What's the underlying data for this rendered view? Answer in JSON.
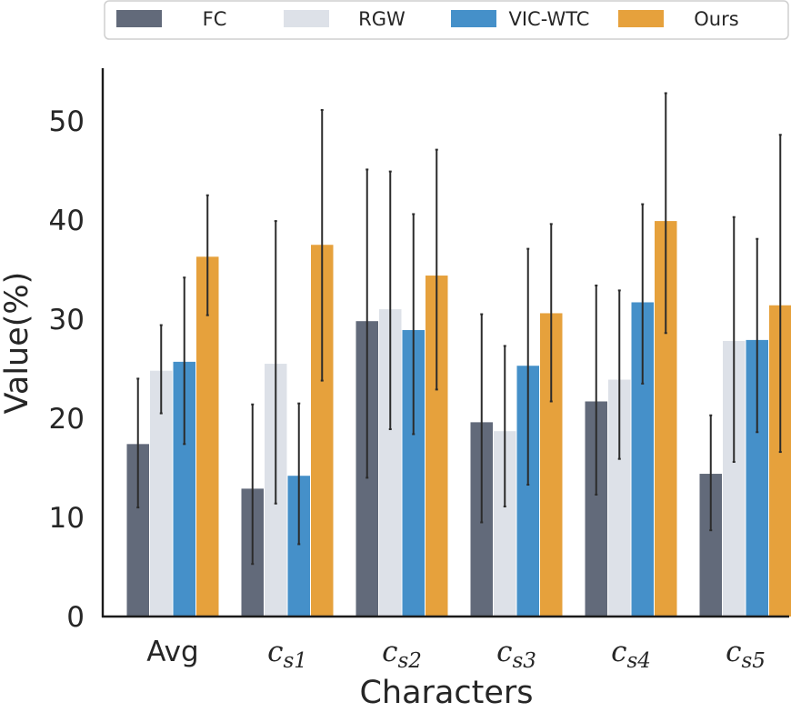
{
  "chart_data": {
    "type": "bar",
    "xlabel": "Characters",
    "ylabel": "Value(%)",
    "ylim": [
      0,
      55
    ],
    "yticks": [
      0,
      10,
      20,
      30,
      40,
      50
    ],
    "legend_position": "top",
    "grid": false,
    "categories": [
      {
        "base": "Avg",
        "math": false,
        "sub": ""
      },
      {
        "base": "c",
        "math": true,
        "sub": "s1"
      },
      {
        "base": "c",
        "math": true,
        "sub": "s2"
      },
      {
        "base": "c",
        "math": true,
        "sub": "s3"
      },
      {
        "base": "c",
        "math": true,
        "sub": "s4"
      },
      {
        "base": "c",
        "math": true,
        "sub": "s5"
      }
    ],
    "series": [
      {
        "name": "FC",
        "color": "#626a7a",
        "values": [
          17.4,
          12.9,
          29.8,
          19.6,
          21.7,
          14.4
        ],
        "err_low": [
          11.0,
          5.3,
          14.0,
          9.5,
          12.3,
          8.7
        ],
        "err_high": [
          24.0,
          21.4,
          45.1,
          30.5,
          33.4,
          20.3
        ]
      },
      {
        "name": "RGW",
        "color": "#dde1e8",
        "values": [
          24.8,
          25.5,
          31.0,
          18.7,
          23.9,
          27.8
        ],
        "err_low": [
          20.5,
          11.4,
          18.9,
          11.1,
          15.9,
          15.6
        ],
        "err_high": [
          29.4,
          39.9,
          44.9,
          27.3,
          32.9,
          40.3
        ]
      },
      {
        "name": "VIC-WTC",
        "color": "#4590c9",
        "values": [
          25.7,
          14.2,
          28.9,
          25.3,
          31.7,
          27.9
        ],
        "err_low": [
          17.4,
          7.3,
          18.4,
          13.3,
          23.5,
          18.6
        ],
        "err_high": [
          34.2,
          21.5,
          40.6,
          37.1,
          41.6,
          38.1
        ]
      },
      {
        "name": "Ours",
        "color": "#e6a13c",
        "values": [
          36.3,
          37.5,
          34.4,
          30.6,
          39.9,
          31.4
        ],
        "err_low": [
          30.4,
          23.8,
          22.9,
          21.7,
          28.6,
          16.6
        ],
        "err_high": [
          42.5,
          51.1,
          47.1,
          39.6,
          52.8,
          48.6
        ]
      }
    ]
  }
}
